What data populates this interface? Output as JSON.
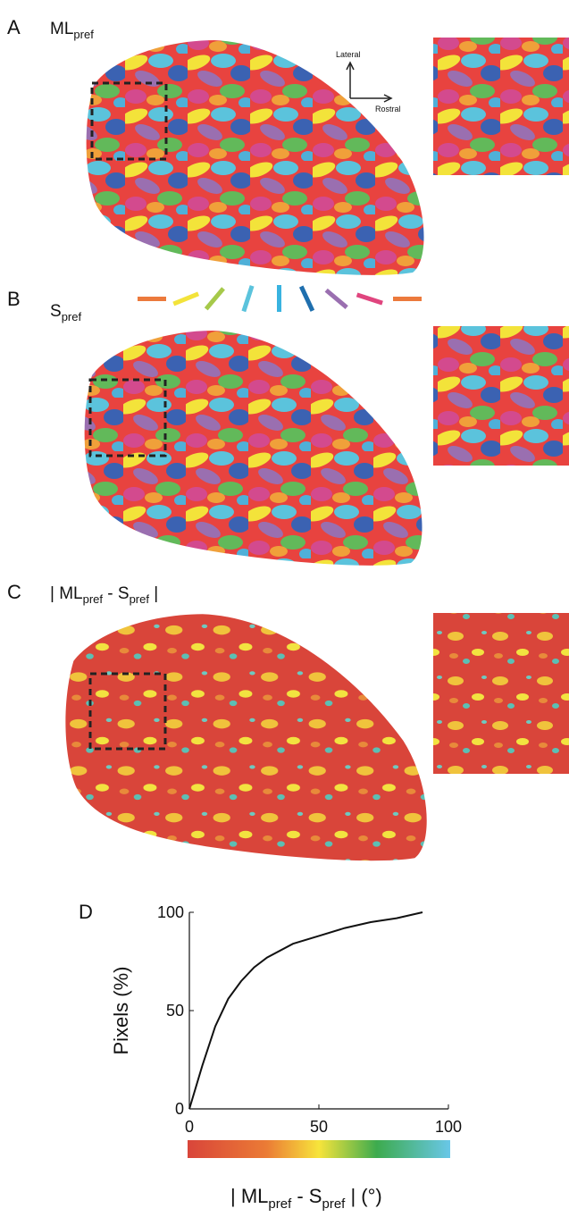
{
  "panels": [
    {
      "label": "A",
      "title": [
        "ML",
        "pref"
      ],
      "compass": {
        "up": "Lateral",
        "right": "Rostral"
      }
    },
    {
      "label": "B",
      "title": [
        "S",
        "pref"
      ]
    },
    {
      "label": "C",
      "title": [
        "| ML",
        "pref",
        " - S",
        "pref",
        " |"
      ]
    }
  ],
  "chart_data": {
    "type": "line",
    "label": "D",
    "x": [
      0,
      5,
      10,
      15,
      20,
      25,
      30,
      40,
      50,
      60,
      70,
      80,
      90
    ],
    "series": [
      {
        "color": "#111111",
        "values": [
          0,
          22,
          42,
          56,
          65,
          72,
          77,
          84,
          88,
          92,
          95,
          97,
          100
        ]
      }
    ],
    "xlim": [
      0,
      100
    ],
    "ylim": [
      0,
      100
    ],
    "xticks": [
      0,
      50,
      100
    ],
    "yticks": [
      0,
      50,
      100
    ],
    "ylabel": "Pixels (%)",
    "xlabel": [
      "| ML",
      "pref",
      " - S",
      "pref",
      " | (°)"
    ]
  }
}
